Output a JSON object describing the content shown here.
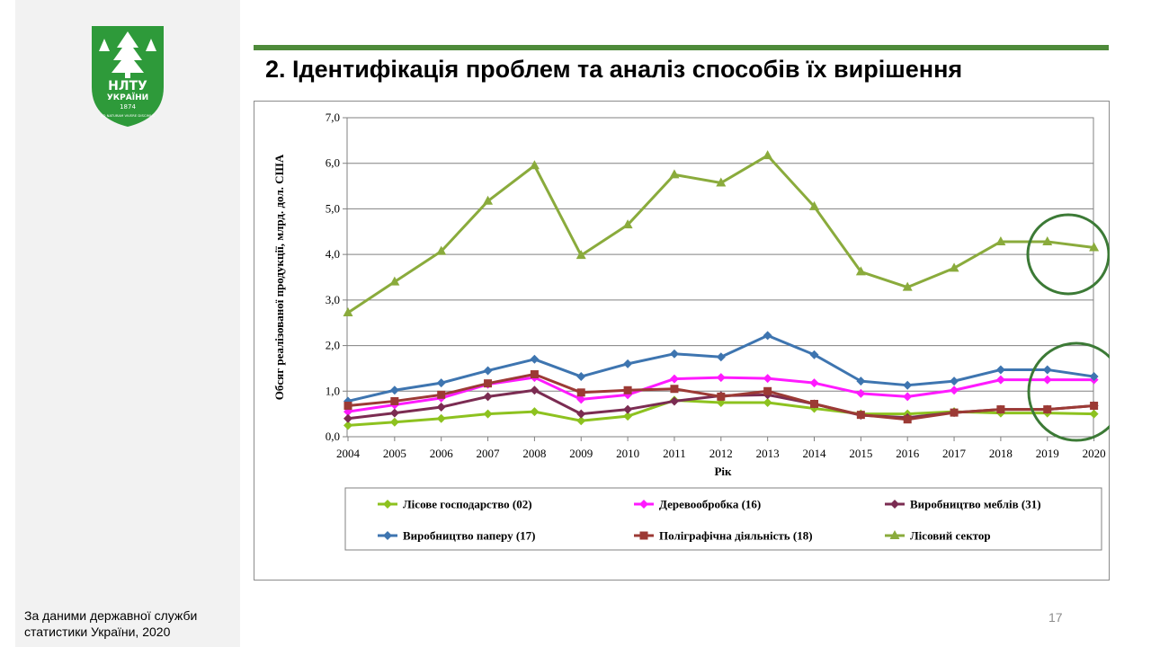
{
  "slide": {
    "title": "2. Ідентифікація проблем та аналіз способів їх вирішення",
    "source_note": "За даними державної служби\nстатистики України, 2020",
    "page_number": "17"
  },
  "logo": {
    "text_top": "НЛТУ",
    "text_mid": "УКРАЇНИ",
    "year": "1874",
    "motto": "AD NATURAM VIVERE DISCIMUS",
    "color": "#2e9a3a"
  },
  "colors": {
    "accent_rule": "#4e8a3a",
    "highlight_circle": "#3c7a36"
  },
  "chart_data": {
    "type": "line",
    "xlabel": "Рік",
    "ylabel": "Обсяг реалізованої продукції, млрд. дол. США",
    "ylim": [
      0,
      7
    ],
    "yticks": [
      "0,0",
      "1,0",
      "2,0",
      "3,0",
      "4,0",
      "5,0",
      "6,0",
      "7,0"
    ],
    "grid": true,
    "legend_position": "bottom",
    "x": [
      "2004",
      "2005",
      "2006",
      "2007",
      "2008",
      "2009",
      "2010",
      "2011",
      "2012",
      "2013",
      "2014",
      "2015",
      "2016",
      "2017",
      "2018",
      "2019",
      "2020"
    ],
    "series": [
      {
        "name": "Лісове господарство (02)",
        "color": "#8dc21f",
        "marker": "diamond",
        "values": [
          0.25,
          0.32,
          0.4,
          0.5,
          0.55,
          0.35,
          0.45,
          0.8,
          0.75,
          0.75,
          0.62,
          0.5,
          0.5,
          0.55,
          0.52,
          0.52,
          0.5
        ]
      },
      {
        "name": "Деревообробка (16)",
        "color": "#ff1aff",
        "marker": "diamond",
        "values": [
          0.55,
          0.7,
          0.85,
          1.15,
          1.3,
          0.82,
          0.92,
          1.27,
          1.3,
          1.28,
          1.18,
          0.95,
          0.88,
          1.02,
          1.25,
          1.25,
          1.25
        ]
      },
      {
        "name": "Виробництво меблів (31)",
        "color": "#7b2c52",
        "marker": "diamond",
        "values": [
          0.4,
          0.52,
          0.65,
          0.88,
          1.02,
          0.5,
          0.6,
          0.78,
          0.9,
          0.92,
          0.72,
          0.47,
          0.42,
          0.53,
          0.6,
          0.6,
          0.68
        ]
      },
      {
        "name": "Виробництво паперу (17)",
        "color": "#3e75b0",
        "marker": "diamond",
        "values": [
          0.78,
          1.02,
          1.18,
          1.45,
          1.7,
          1.32,
          1.6,
          1.82,
          1.75,
          2.22,
          1.8,
          1.22,
          1.13,
          1.22,
          1.47,
          1.47,
          1.32
        ]
      },
      {
        "name": "Поліграфічна діяльність (18)",
        "color": "#9c3a35",
        "marker": "square",
        "values": [
          0.68,
          0.78,
          0.92,
          1.17,
          1.37,
          0.97,
          1.02,
          1.05,
          0.88,
          1.0,
          0.72,
          0.48,
          0.38,
          0.53,
          0.6,
          0.6,
          0.68
        ]
      },
      {
        "name": "Лісовий сектор",
        "color": "#8aab3c",
        "marker": "triangle",
        "values": [
          2.72,
          3.4,
          4.07,
          5.17,
          5.95,
          3.98,
          4.65,
          5.75,
          5.57,
          6.17,
          5.05,
          3.62,
          3.28,
          3.7,
          4.28,
          4.28,
          4.15
        ]
      }
    ],
    "highlights": [
      "2019–2020 Лісовий сектор",
      "2019–2020 інші сегменти"
    ]
  }
}
